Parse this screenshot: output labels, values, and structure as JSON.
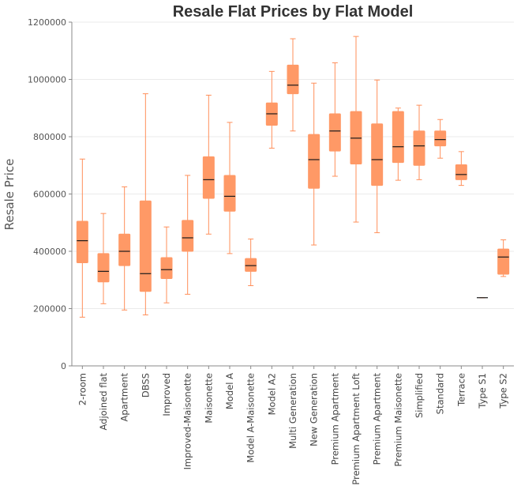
{
  "chart_data": {
    "type": "box",
    "title": "Resale Flat Prices by Flat Model",
    "ylabel": "Resale Price",
    "xlabel": "",
    "ylim": [
      0,
      1200000
    ],
    "yticks": [
      "0",
      "200000",
      "400000",
      "600000",
      "800000",
      "1000000",
      "1200000"
    ],
    "grid": "horizontal",
    "legend": "none",
    "box_color": "#ff9966",
    "whisker_color": "#ff8f5a",
    "median_color": "#1a1a1a",
    "categories": [
      "2-room",
      "Adjoined flat",
      "Apartment",
      "DBSS",
      "Improved",
      "Improved-Maisonette",
      "Maisonette",
      "Model A",
      "Model A-Maisonette",
      "Model A2",
      "Multi Generation",
      "New Generation",
      "Premium Apartment",
      "Premium Apartment Loft",
      "Premium Apartment",
      "Premium Maisonette",
      "Simplified",
      "Standard",
      "Terrace",
      "Type S1",
      "Type S2"
    ],
    "boxes": [
      {
        "min": 170000,
        "q1": 360000,
        "median": 437000,
        "q3": 505000,
        "max": 722000
      },
      {
        "min": 217000,
        "q1": 293000,
        "median": 330000,
        "q3": 392000,
        "max": 532000
      },
      {
        "min": 195000,
        "q1": 350000,
        "median": 400000,
        "q3": 460000,
        "max": 625000
      },
      {
        "min": 178000,
        "q1": 260000,
        "median": 322000,
        "q3": 576000,
        "max": 950000
      },
      {
        "min": 220000,
        "q1": 305000,
        "median": 336000,
        "q3": 378000,
        "max": 485000
      },
      {
        "min": 250000,
        "q1": 400000,
        "median": 447000,
        "q3": 508000,
        "max": 665000
      },
      {
        "min": 460000,
        "q1": 585000,
        "median": 650000,
        "q3": 730000,
        "max": 945000
      },
      {
        "min": 392000,
        "q1": 540000,
        "median": 592000,
        "q3": 665000,
        "max": 850000
      },
      {
        "min": 280000,
        "q1": 330000,
        "median": 350000,
        "q3": 375000,
        "max": 443000
      },
      {
        "min": 760000,
        "q1": 840000,
        "median": 880000,
        "q3": 918000,
        "max": 1028000
      },
      {
        "min": 820000,
        "q1": 950000,
        "median": 980000,
        "q3": 1050000,
        "max": 1142000
      },
      {
        "min": 422000,
        "q1": 620000,
        "median": 720000,
        "q3": 808000,
        "max": 987000
      },
      {
        "min": 662000,
        "q1": 750000,
        "median": 820000,
        "q3": 880000,
        "max": 1058000
      },
      {
        "min": 502000,
        "q1": 705000,
        "median": 795000,
        "q3": 888000,
        "max": 1150000
      },
      {
        "min": 465000,
        "q1": 630000,
        "median": 720000,
        "q3": 845000,
        "max": 998000
      },
      {
        "min": 648000,
        "q1": 710000,
        "median": 765000,
        "q3": 888000,
        "max": 900000
      },
      {
        "min": 650000,
        "q1": 700000,
        "median": 768000,
        "q3": 820000,
        "max": 910000
      },
      {
        "min": 725000,
        "q1": 768000,
        "median": 790000,
        "q3": 820000,
        "max": 860000
      },
      {
        "min": 630000,
        "q1": 650000,
        "median": 668000,
        "q3": 702000,
        "max": 748000
      },
      {
        "min": 238000,
        "q1": 238000,
        "median": 238000,
        "q3": 238000,
        "max": 238000
      },
      {
        "min": 312000,
        "q1": 320000,
        "median": 380000,
        "q3": 408000,
        "max": 440000
      }
    ]
  }
}
